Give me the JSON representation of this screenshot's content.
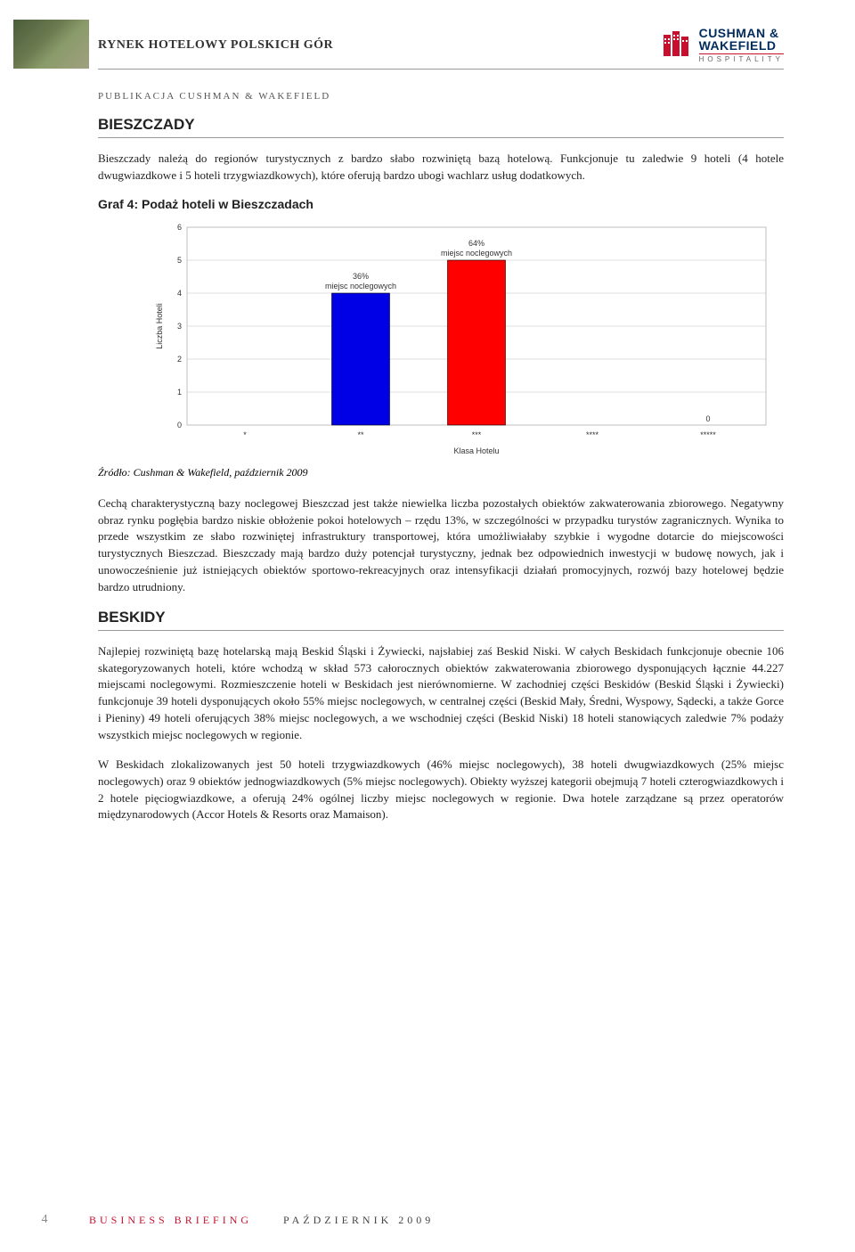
{
  "header": {
    "title": "RYNEK HOTELOWY POLSKICH GÓR",
    "logo_line1": "CUSHMAN &",
    "logo_line2": "WAKEFIELD",
    "logo_sub": "HOSPITALITY",
    "logo_red": "#c8102e",
    "logo_navy": "#002b5c"
  },
  "subhead": "PUBLIKACJA CUSHMAN & WAKEFIELD",
  "sec1": {
    "title": "BIESZCZADY",
    "p1": "Bieszczady należą do regionów turystycznych z bardzo słabo rozwiniętą bazą hotelową. Funkcjonuje tu zaledwie 9 hoteli (4 hotele dwugwiazdkowe i 5 hoteli trzygwiazdkowych), które oferują bardzo ubogi wachlarz usług dodatkowych.",
    "graf_title": "Graf 4: Podaż hoteli w Bieszczadach",
    "source": "Źródło: Cushman & Wakefield, październik 2009",
    "p2": "Cechą charakterystyczną bazy noclegowej Bieszczad jest także niewielka liczba pozostałych obiektów zakwaterowania zbiorowego. Negatywny obraz rynku pogłębia bardzo niskie obłożenie pokoi hotelowych – rzędu 13%, w szczególności w przypadku turystów zagranicznych. Wynika to przede wszystkim ze słabo rozwiniętej infrastruktury transportowej, która umożliwiałaby szybkie i wygodne dotarcie do miejscowości turystycznych Bieszczad. Bieszczady mają bardzo duży potencjał turystyczny, jednak bez odpowiednich inwestycji w budowę nowych, jak i unowocześnienie już istniejących obiektów sportowo-rekreacyjnych oraz intensyfikacji działań promocyjnych, rozwój bazy hotelowej będzie bardzo utrudniony."
  },
  "sec2": {
    "title": "BESKIDY",
    "p1": "Najlepiej rozwiniętą bazę hotelarską mają Beskid Śląski i Żywiecki, najsłabiej zaś Beskid Niski. W całych Beskidach funkcjonuje obecnie 106 skategoryzowanych hoteli, które wchodzą w skład 573 całorocznych obiektów zakwaterowania zbiorowego dysponujących łącznie 44.227 miejscami noclegowymi. Rozmieszczenie hoteli w Beskidach jest nierównomierne. W zachodniej części Beskidów (Beskid Śląski i Żywiecki) funkcjonuje 39 hoteli dysponujących około 55% miejsc noclegowych, w centralnej części (Beskid Mały, Średni, Wyspowy, Sądecki, a także Gorce i Pieniny) 49 hoteli oferujących 38% miejsc noclegowych, a we wschodniej części (Beskid Niski) 18 hoteli stanowiących zaledwie 7% podaży wszystkich miejsc noclegowych w regionie.",
    "p2": "W Beskidach zlokalizowanych jest 50 hoteli trzygwiazdkowych (46% miejsc noclegowych), 38 hoteli dwugwiazdkowych (25% miejsc noclegowych) oraz 9 obiektów jednogwiazdkowych (5% miejsc noclegowych). Obiekty wyższej kategorii obejmują 7 hoteli czterogwiazdkowych i 2 hotele pięciogwiazdkowe, a oferują 24% ogólnej liczby miejsc noclegowych w regionie. Dwa hotele zarządzane są przez operatorów międzynarodowych (Accor Hotels & Resorts oraz Mamaison)."
  },
  "chart": {
    "type": "bar",
    "ylabel": "Liczba Hoteli",
    "xlabel": "Klasa Hotelu",
    "categories": [
      "*",
      "**",
      "***",
      "****",
      "*****"
    ],
    "values": [
      null,
      4,
      5,
      null,
      0
    ],
    "bar_labels": {
      "1": {
        "pct": "36%",
        "txt": "miejsc noclegowych"
      },
      "2": {
        "pct": "64%",
        "txt": "miejsc noclegowych"
      }
    },
    "zero_label": "0",
    "bar_colors": [
      "#0000e6",
      "#0000e6",
      "#ff0000",
      "#0000e6",
      "#0000e6"
    ],
    "ylim": [
      0,
      6
    ],
    "ytick_step": 1,
    "yticks": [
      "0",
      "1",
      "2",
      "3",
      "4",
      "5",
      "6"
    ],
    "background_color": "#ffffff",
    "grid_color": "#bfbfbf",
    "label_fontsize": 9,
    "axis_fontsize": 9,
    "bar_width": 0.5
  },
  "footer": {
    "page": "4",
    "biz": "BUSINESS BRIEFING",
    "date": "PAŹDZIERNIK 2009"
  }
}
